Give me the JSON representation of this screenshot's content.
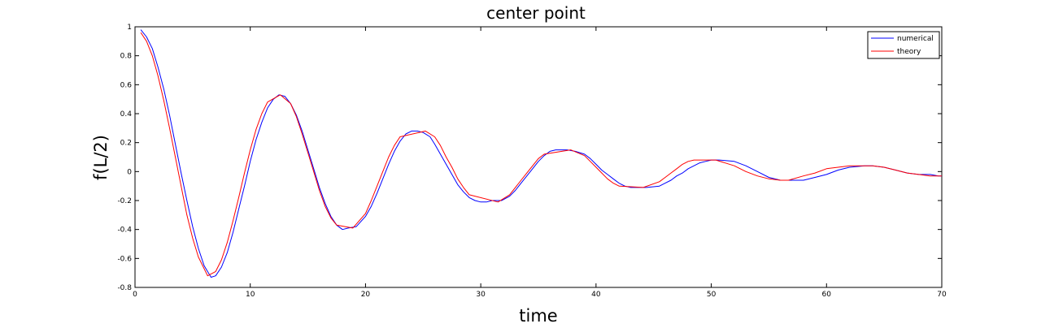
{
  "chart_data": {
    "type": "line",
    "title": "center point",
    "xlabel": "time",
    "ylabel": "f(L/2)",
    "xlim": [
      0,
      70
    ],
    "ylim": [
      -0.8,
      1
    ],
    "xticks": [
      0,
      10,
      20,
      30,
      40,
      50,
      60,
      70
    ],
    "yticks": [
      -0.8,
      -0.6,
      -0.4,
      -0.2,
      0,
      0.2,
      0.4,
      0.6,
      0.8,
      1
    ],
    "grid": false,
    "legend_position": "top-right",
    "series": [
      {
        "name": "numerical",
        "color": "#0000ff",
        "x": [
          0.5,
          1,
          1.5,
          2,
          2.5,
          3,
          3.5,
          4,
          4.5,
          5,
          5.5,
          6,
          6.6,
          7,
          7.5,
          8,
          8.5,
          9,
          9.5,
          10,
          10.5,
          11,
          11.5,
          12,
          12.5,
          13,
          13.5,
          14,
          14.5,
          15,
          15.5,
          16,
          16.5,
          17,
          17.5,
          18,
          18.5,
          19.2,
          20,
          20.5,
          21,
          21.5,
          22,
          22.5,
          23,
          23.5,
          24,
          24.5,
          25,
          25.6,
          26,
          26.5,
          27,
          27.5,
          28,
          28.5,
          29,
          29.5,
          30,
          30.5,
          31,
          31.8,
          32.5,
          33,
          33.5,
          34,
          34.5,
          35,
          35.5,
          36,
          36.5,
          37,
          37.5,
          38.2,
          39,
          39.5,
          40,
          40.5,
          41,
          41.5,
          42,
          42.5,
          43,
          43.5,
          44.4,
          45.5,
          46,
          46.5,
          47,
          47.5,
          48,
          48.5,
          49,
          49.5,
          50,
          50.7,
          52,
          53,
          54,
          55,
          56,
          57.1,
          58,
          59,
          60,
          61,
          62,
          63.3,
          64,
          65,
          66,
          67,
          68,
          69,
          69.7,
          70
        ],
        "values": [
          0.98,
          0.93,
          0.85,
          0.72,
          0.57,
          0.39,
          0.19,
          -0.01,
          -0.2,
          -0.38,
          -0.53,
          -0.65,
          -0.73,
          -0.72,
          -0.66,
          -0.56,
          -0.42,
          -0.26,
          -0.1,
          0.07,
          0.22,
          0.34,
          0.44,
          0.5,
          0.53,
          0.52,
          0.47,
          0.39,
          0.28,
          0.15,
          0.02,
          -0.11,
          -0.22,
          -0.31,
          -0.37,
          -0.4,
          -0.39,
          -0.38,
          -0.31,
          -0.24,
          -0.15,
          -0.05,
          0.05,
          0.14,
          0.21,
          0.26,
          0.28,
          0.28,
          0.27,
          0.24,
          0.19,
          0.12,
          0.05,
          -0.02,
          -0.09,
          -0.14,
          -0.18,
          -0.2,
          -0.21,
          -0.21,
          -0.2,
          -0.2,
          -0.17,
          -0.13,
          -0.08,
          -0.03,
          0.02,
          0.07,
          0.11,
          0.14,
          0.15,
          0.15,
          0.15,
          0.14,
          0.12,
          0.09,
          0.05,
          0.01,
          -0.02,
          -0.05,
          -0.08,
          -0.1,
          -0.11,
          -0.11,
          -0.11,
          -0.1,
          -0.08,
          -0.06,
          -0.03,
          -0.01,
          0.02,
          0.04,
          0.06,
          0.07,
          0.08,
          0.08,
          0.07,
          0.04,
          0.0,
          -0.04,
          -0.06,
          -0.06,
          -0.06,
          -0.04,
          -0.02,
          0.01,
          0.03,
          0.04,
          0.04,
          0.03,
          0.01,
          -0.01,
          -0.02,
          -0.02,
          -0.03,
          -0.03
        ]
      },
      {
        "name": "theory",
        "color": "#ff0000",
        "x": [
          0.5,
          1,
          1.5,
          2,
          2.5,
          3,
          3.5,
          4,
          4.5,
          5,
          5.5,
          6.3,
          7,
          7.5,
          8,
          8.5,
          9,
          9.5,
          10,
          10.5,
          11,
          11.5,
          12.6,
          13.5,
          14,
          14.5,
          15,
          15.5,
          16,
          16.5,
          17,
          17.5,
          18.9,
          20,
          20.5,
          21,
          21.5,
          22,
          22.5,
          23,
          25.2,
          26,
          26.5,
          27,
          27.5,
          28,
          28.5,
          29,
          31.5,
          32.5,
          33,
          33.5,
          34,
          34.5,
          35,
          35.5,
          37.8,
          39,
          39.5,
          40,
          40.5,
          41,
          41.5,
          42,
          44.1,
          45.5,
          46,
          46.5,
          47,
          47.5,
          48,
          48.5,
          50.4,
          52,
          53,
          54,
          55,
          56,
          56.7,
          58,
          59,
          60,
          61,
          62,
          63,
          64,
          65,
          66,
          67,
          68,
          69,
          70
        ],
        "values": [
          0.96,
          0.9,
          0.8,
          0.66,
          0.49,
          0.3,
          0.1,
          -0.1,
          -0.3,
          -0.46,
          -0.59,
          -0.72,
          -0.69,
          -0.61,
          -0.49,
          -0.34,
          -0.18,
          -0.01,
          0.15,
          0.29,
          0.4,
          0.48,
          0.53,
          0.47,
          0.38,
          0.26,
          0.13,
          0.0,
          -0.13,
          -0.24,
          -0.32,
          -0.37,
          -0.39,
          -0.29,
          -0.2,
          -0.1,
          0.0,
          0.1,
          0.18,
          0.24,
          0.28,
          0.24,
          0.18,
          0.1,
          0.03,
          -0.05,
          -0.11,
          -0.16,
          -0.21,
          -0.16,
          -0.11,
          -0.06,
          -0.01,
          0.04,
          0.09,
          0.12,
          0.15,
          0.11,
          0.07,
          0.03,
          -0.01,
          -0.05,
          -0.08,
          -0.1,
          -0.11,
          -0.07,
          -0.04,
          -0.01,
          0.02,
          0.05,
          0.07,
          0.08,
          0.08,
          0.04,
          0.0,
          -0.03,
          -0.05,
          -0.06,
          -0.06,
          -0.03,
          -0.01,
          0.02,
          0.03,
          0.04,
          0.04,
          0.04,
          0.03,
          0.01,
          -0.01,
          -0.02,
          -0.03,
          -0.03
        ]
      }
    ]
  }
}
